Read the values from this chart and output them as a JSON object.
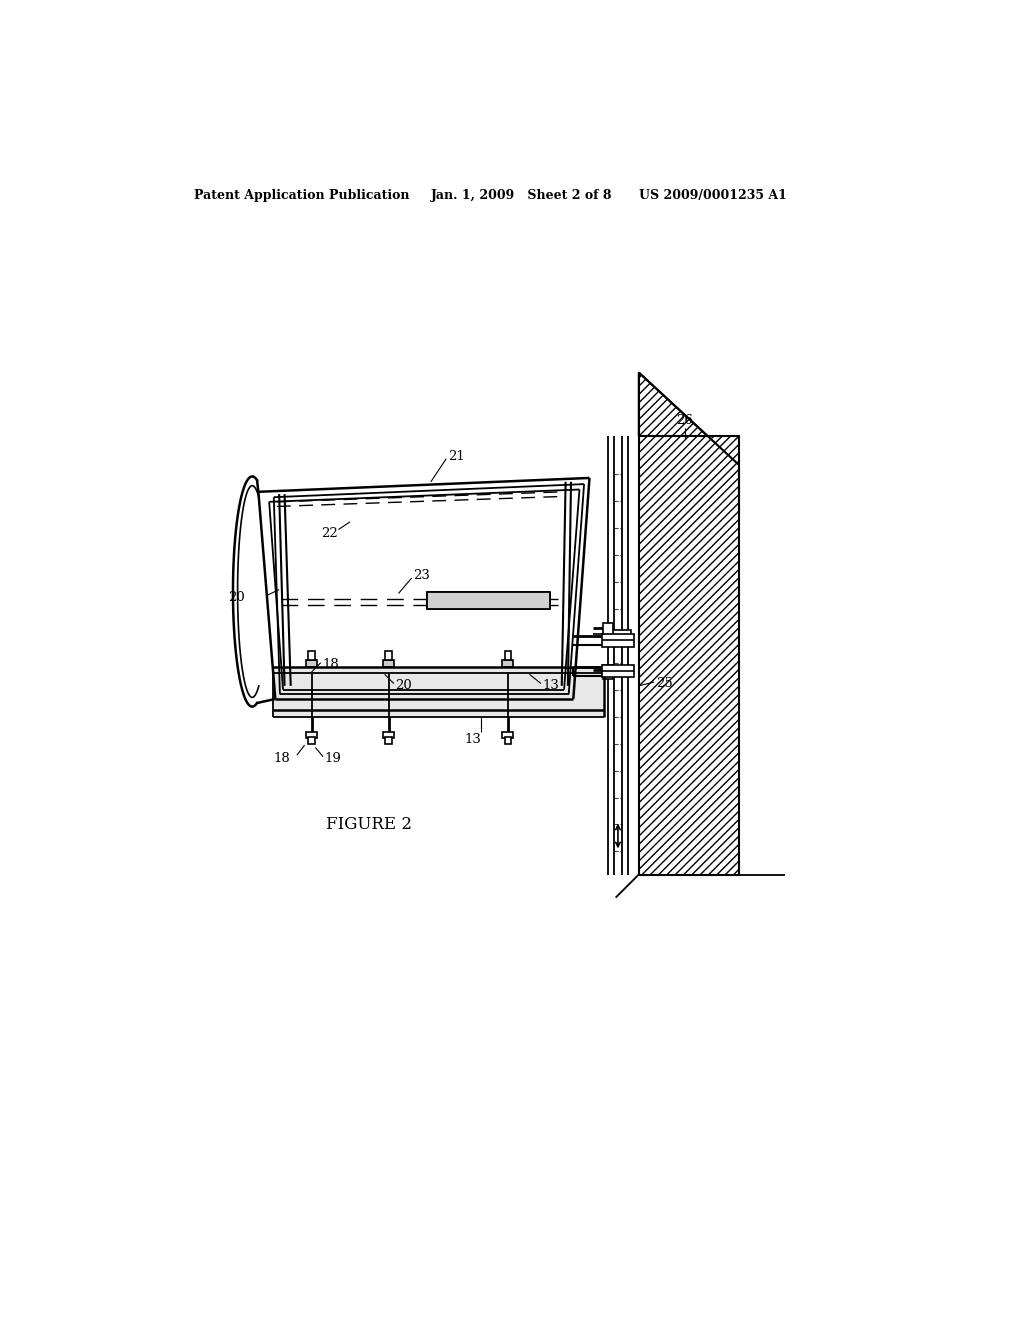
{
  "background_color": "#ffffff",
  "header_left": "Patent Application Publication",
  "header_center": "Jan. 1, 2009   Sheet 2 of 8",
  "header_right": "US 2009/0001235 A1",
  "figure_label": "FIGURE 2"
}
